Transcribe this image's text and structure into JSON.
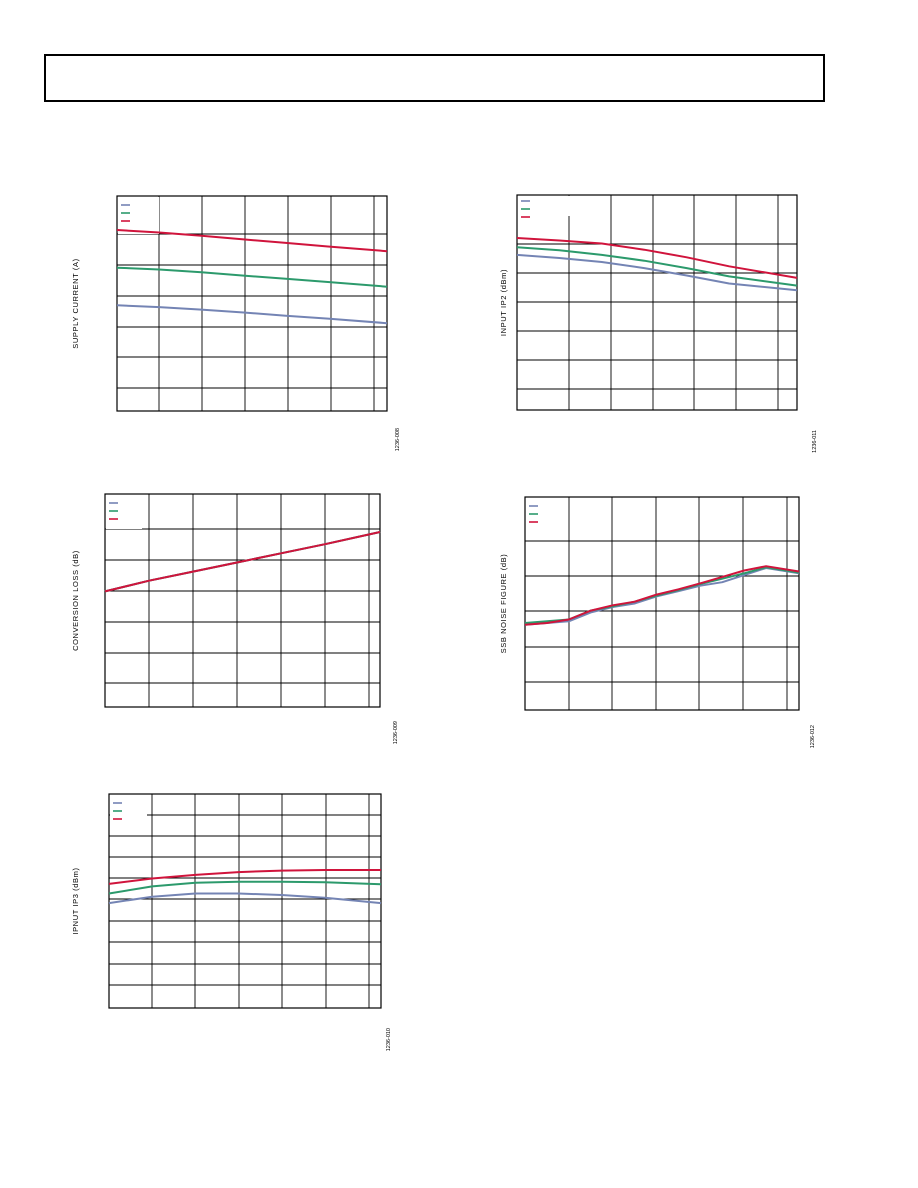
{
  "page": {
    "header_title": ""
  },
  "colors": {
    "grid": "#000000",
    "series_blue": "#7484b4",
    "series_green": "#2c9a6c",
    "series_red": "#d0143c"
  },
  "chart_data": [
    {
      "id": "supply",
      "type": "line",
      "ylabel": "SUPPLY CURRENT (A)",
      "figure_id": "1236-008",
      "xlim": [
        0,
        6.4
      ],
      "ylim": [
        0,
        6
      ],
      "series": [
        {
          "color": "series_blue",
          "x": [
            0,
            1,
            2,
            3,
            4,
            5,
            6.4
          ],
          "y": [
            2.95,
            2.9,
            2.83,
            2.75,
            2.66,
            2.58,
            2.45
          ]
        },
        {
          "color": "series_green",
          "x": [
            0,
            1,
            2,
            3,
            4,
            5,
            6.4
          ],
          "y": [
            4.0,
            3.95,
            3.87,
            3.78,
            3.69,
            3.6,
            3.47
          ]
        },
        {
          "color": "series_red",
          "x": [
            0,
            1,
            2,
            3,
            4,
            5,
            6.4
          ],
          "y": [
            5.05,
            4.98,
            4.89,
            4.79,
            4.69,
            4.59,
            4.46
          ]
        }
      ]
    },
    {
      "id": "iip2",
      "type": "line",
      "ylabel": "INPUT IP2 (dBm)",
      "figure_id": "1236-011",
      "xlim": [
        0,
        6.6
      ],
      "ylim": [
        0,
        7
      ],
      "series": [
        {
          "color": "series_blue",
          "x": [
            0,
            1,
            2,
            3,
            4,
            5,
            6.6
          ],
          "y": [
            5.05,
            4.95,
            4.82,
            4.62,
            4.38,
            4.12,
            3.9
          ]
        },
        {
          "color": "series_green",
          "x": [
            0,
            1,
            2,
            3,
            4,
            5,
            6.6
          ],
          "y": [
            5.3,
            5.2,
            5.05,
            4.86,
            4.62,
            4.35,
            4.05
          ]
        },
        {
          "color": "series_red",
          "x": [
            0,
            1,
            2,
            3,
            4,
            5,
            6.6
          ],
          "y": [
            5.6,
            5.52,
            5.42,
            5.22,
            4.97,
            4.68,
            4.3
          ]
        }
      ]
    },
    {
      "id": "convloss",
      "type": "line",
      "ylabel": "CONVERSION LOSS (dB)",
      "figure_id": "1236-009",
      "xlim": [
        0,
        6.25
      ],
      "ylim": [
        0,
        7
      ],
      "series": [
        {
          "color": "series_blue",
          "x": [
            0,
            1,
            2,
            3,
            4,
            5,
            6.25
          ],
          "y": [
            3.8,
            4.15,
            4.45,
            4.75,
            5.05,
            5.35,
            5.75
          ]
        },
        {
          "color": "series_green",
          "x": [
            0,
            1,
            2,
            3,
            4,
            5,
            6.25
          ],
          "y": [
            3.8,
            4.15,
            4.45,
            4.75,
            5.05,
            5.35,
            5.75
          ]
        },
        {
          "color": "series_red",
          "x": [
            0,
            1,
            2,
            3,
            4,
            5,
            6.25
          ],
          "y": [
            3.8,
            4.15,
            4.45,
            4.75,
            5.05,
            5.35,
            5.75
          ]
        }
      ]
    },
    {
      "id": "noisefig",
      "type": "line",
      "ylabel": "SSB NOISE FIGURE (dB)",
      "figure_id": "1236-012",
      "xlim": [
        0,
        6.25
      ],
      "ylim": [
        0,
        6
      ],
      "series": [
        {
          "color": "series_blue",
          "x": [
            0,
            0.5,
            1,
            1.5,
            2,
            2.5,
            3,
            3.5,
            4,
            4.5,
            5,
            5.5,
            6.25
          ],
          "y": [
            2.4,
            2.45,
            2.5,
            2.75,
            2.9,
            3.0,
            3.2,
            3.35,
            3.5,
            3.6,
            3.8,
            4.0,
            3.85
          ]
        },
        {
          "color": "series_green",
          "x": [
            0,
            0.5,
            1,
            1.5,
            2,
            2.5,
            3,
            3.5,
            4,
            4.5,
            5,
            5.5,
            6.25
          ],
          "y": [
            2.45,
            2.5,
            2.55,
            2.8,
            2.92,
            3.05,
            3.22,
            3.38,
            3.55,
            3.7,
            3.85,
            4.02,
            3.87
          ]
        },
        {
          "color": "series_red",
          "x": [
            0,
            0.5,
            1,
            1.5,
            2,
            2.5,
            3,
            3.5,
            4,
            4.5,
            5,
            5.5,
            6.25
          ],
          "y": [
            2.4,
            2.45,
            2.55,
            2.8,
            2.95,
            3.05,
            3.25,
            3.4,
            3.57,
            3.75,
            3.93,
            4.05,
            3.9
          ]
        }
      ]
    },
    {
      "id": "iip3",
      "type": "line",
      "ylabel": "IPNUT IP3 (dBm)",
      "figure_id": "1236-010",
      "xlim": [
        0,
        6.3
      ],
      "ylim": [
        0,
        10
      ],
      "series": [
        {
          "color": "series_blue",
          "x": [
            0,
            1,
            2,
            3,
            4,
            5,
            6.3
          ],
          "y": [
            4.9,
            5.2,
            5.35,
            5.35,
            5.28,
            5.15,
            4.9
          ]
        },
        {
          "color": "series_green",
          "x": [
            0,
            1,
            2,
            3,
            4,
            5,
            6.3
          ],
          "y": [
            5.35,
            5.68,
            5.85,
            5.9,
            5.9,
            5.88,
            5.78
          ]
        },
        {
          "color": "series_red",
          "x": [
            0,
            1,
            2,
            3,
            4,
            5,
            6.3
          ],
          "y": [
            5.8,
            6.05,
            6.22,
            6.35,
            6.42,
            6.45,
            6.45
          ]
        }
      ]
    }
  ]
}
